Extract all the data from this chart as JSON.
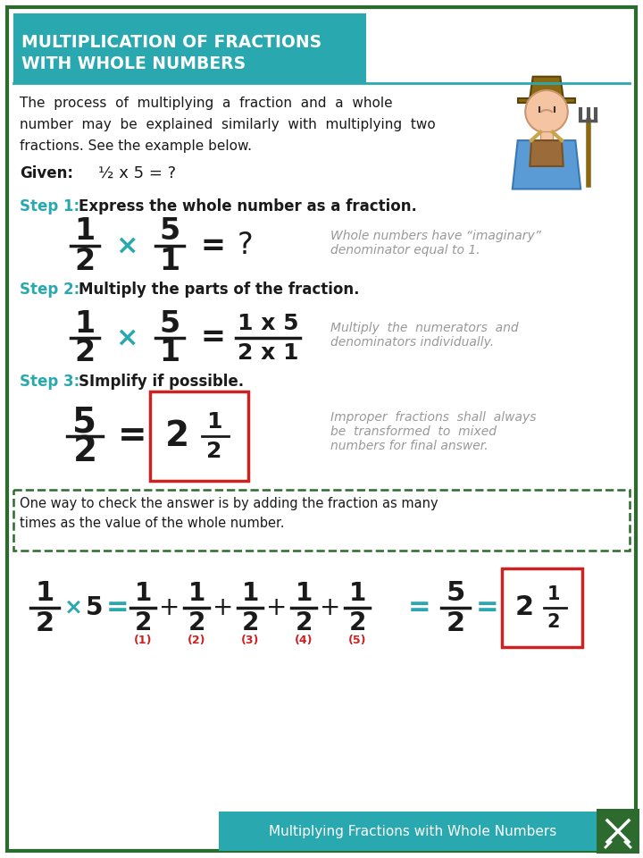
{
  "title_line1": "MULTIPLICATION OF FRACTIONS",
  "title_line2": "WITH WHOLE NUMBERS",
  "title_bg": "#2aa8b0",
  "outer_border": "#2d6a2d",
  "footer_bg": "#2aa8b0",
  "footer_text": "Multiplying Fractions with Whole Numbers",
  "teal": "#2aa8b0",
  "dark_green": "#2d6a2d",
  "red_box": "#cc2222",
  "gray_text": "#999999",
  "black": "#1a1a1a",
  "bg_color": "#ffffff",
  "intro_lines": [
    "The  process  of  multiplying  a  fraction  and  a  whole",
    "number  may  be  explained  similarly  with  multiplying  two",
    "fractions. See the example below."
  ]
}
